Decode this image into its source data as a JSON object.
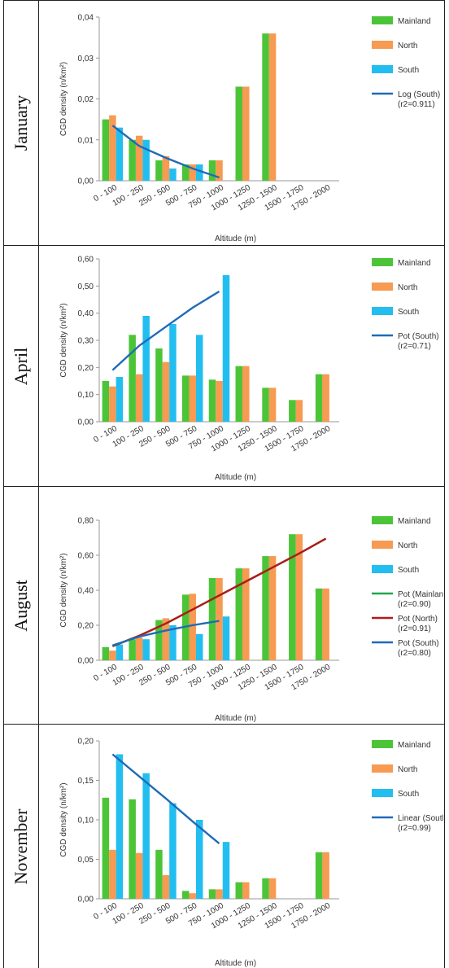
{
  "colors": {
    "Mainland": "#4cc437",
    "North": "#f79a52",
    "South": "#23bef0",
    "trend_south": "#1f6ab8",
    "trend_north": "#b01b1b",
    "trend_mainland": "#1fa84a"
  },
  "chart_data": [
    {
      "type": "bar",
      "row_label": "January",
      "categories": [
        "0 - 100",
        "100 - 250",
        "250 - 500",
        "500 - 750",
        "750 - 1000",
        "1000 - 1250",
        "1250 - 1500",
        "1500 - 1750",
        "1750 - 2000"
      ],
      "series": [
        {
          "name": "Mainland",
          "values": [
            0.015,
            0.01,
            0.005,
            0.004,
            0.005,
            0.023,
            0.036,
            null,
            null
          ]
        },
        {
          "name": "North",
          "values": [
            0.016,
            0.011,
            0.006,
            0.004,
            0.005,
            0.023,
            0.036,
            null,
            null
          ]
        },
        {
          "name": "South",
          "values": [
            0.013,
            0.01,
            0.003,
            0.004,
            null,
            null,
            null,
            null,
            null
          ]
        }
      ],
      "trendlines": [
        {
          "label": "Log (South)",
          "r2_label": "(r2=0.911)",
          "color_key": "trend_south",
          "type": "log",
          "values": [
            0.0135,
            0.0085,
            0.0056,
            0.003,
            0.0008
          ]
        }
      ],
      "ylim": [
        0,
        0.04
      ],
      "yticks": [
        "0,00",
        "0,01",
        "0,02",
        "0,03",
        "0,04"
      ],
      "ylabel": "CGD density (n/km²)",
      "xlabel": "Altitude (m)"
    },
    {
      "type": "bar",
      "row_label": "April",
      "categories": [
        "0 - 100",
        "100 - 250",
        "250 - 500",
        "500 - 750",
        "750 - 1000",
        "1000 - 1250",
        "1250 - 1500",
        "1500 - 1750",
        "1750 - 2000"
      ],
      "series": [
        {
          "name": "Mainland",
          "values": [
            0.15,
            0.32,
            0.27,
            0.17,
            0.155,
            0.205,
            0.125,
            0.08,
            0.175
          ]
        },
        {
          "name": "North",
          "values": [
            0.13,
            0.175,
            0.22,
            0.17,
            0.15,
            0.205,
            0.125,
            0.08,
            0.175
          ]
        },
        {
          "name": "South",
          "values": [
            0.165,
            0.39,
            0.36,
            0.32,
            0.54,
            null,
            null,
            null,
            null
          ]
        }
      ],
      "trendlines": [
        {
          "label": "Pot (South)",
          "r2_label": "(r2=0.71)",
          "color_key": "trend_south",
          "type": "power",
          "values": [
            0.19,
            0.28,
            0.35,
            0.42,
            0.48
          ]
        }
      ],
      "ylim": [
        0,
        0.6
      ],
      "yticks": [
        "0,00",
        "0,10",
        "0,20",
        "0,30",
        "0,40",
        "0,50",
        "0,60"
      ],
      "ylabel": "CGD density (n/km²)",
      "xlabel": "Altitude (m)"
    },
    {
      "type": "bar",
      "row_label": "August",
      "categories": [
        "0 - 100",
        "100 - 250",
        "250 - 500",
        "500 - 750",
        "750 - 1000",
        "1000 - 1250",
        "1250 - 1500",
        "1500 - 1750",
        "1750 - 2000"
      ],
      "series": [
        {
          "name": "Mainland",
          "values": [
            0.075,
            0.12,
            0.23,
            0.375,
            0.47,
            0.525,
            0.595,
            0.72,
            0.41
          ]
        },
        {
          "name": "North",
          "values": [
            0.055,
            0.13,
            0.24,
            0.38,
            0.47,
            0.525,
            0.595,
            0.72,
            0.41
          ]
        },
        {
          "name": "South",
          "values": [
            0.09,
            0.12,
            0.2,
            0.15,
            0.25,
            null,
            null,
            null,
            null
          ]
        }
      ],
      "trendlines": [
        {
          "label": "Pot (Mainland)",
          "r2_label": "(r2=0.90)",
          "color_key": "trend_mainland",
          "type": "power",
          "values": [
            0.08,
            0.14,
            0.21,
            0.29,
            0.37,
            0.45,
            0.53,
            0.61,
            0.695
          ]
        },
        {
          "label": "Pot (North)",
          "r2_label": "(r2=0.91)",
          "color_key": "trend_north",
          "type": "power",
          "values": [
            0.08,
            0.14,
            0.21,
            0.29,
            0.37,
            0.45,
            0.53,
            0.61,
            0.695
          ]
        },
        {
          "label": "Pot (South)",
          "r2_label": "(r2=0.80)",
          "color_key": "trend_south",
          "type": "power",
          "values": [
            0.085,
            0.135,
            0.17,
            0.2,
            0.225
          ]
        }
      ],
      "ylim": [
        0,
        0.8
      ],
      "yticks": [
        "0,00",
        "0,20",
        "0,40",
        "0,60",
        "0,80"
      ],
      "ylabel": "CGD density (n/km²)",
      "xlabel": "Altitude (m)"
    },
    {
      "type": "bar",
      "row_label": "November",
      "categories": [
        "0 - 100",
        "100 - 250",
        "250 - 500",
        "500 - 750",
        "750 - 1000",
        "1000 - 1250",
        "1250 - 1500",
        "1500 - 1750",
        "1750 - 2000"
      ],
      "series": [
        {
          "name": "Mainland",
          "values": [
            0.128,
            0.126,
            0.062,
            0.01,
            0.012,
            0.021,
            0.026,
            null,
            0.059
          ]
        },
        {
          "name": "North",
          "values": [
            0.062,
            0.058,
            0.03,
            0.007,
            0.012,
            0.021,
            0.026,
            null,
            0.059
          ]
        },
        {
          "name": "South",
          "values": [
            0.183,
            0.159,
            0.121,
            0.1,
            0.072,
            null,
            null,
            null,
            null
          ]
        }
      ],
      "trendlines": [
        {
          "label": "Linear (South)",
          "r2_label": "(r2=0.99)",
          "color_key": "trend_south",
          "type": "linear",
          "values": [
            0.183,
            0.155,
            0.127,
            0.098,
            0.07
          ]
        }
      ],
      "ylim": [
        0,
        0.2
      ],
      "yticks": [
        "0,00",
        "0,05",
        "0,10",
        "0,15",
        "0,20"
      ],
      "ylabel": "CGD density (n/km²)",
      "xlabel": "Altitude (m)"
    }
  ]
}
